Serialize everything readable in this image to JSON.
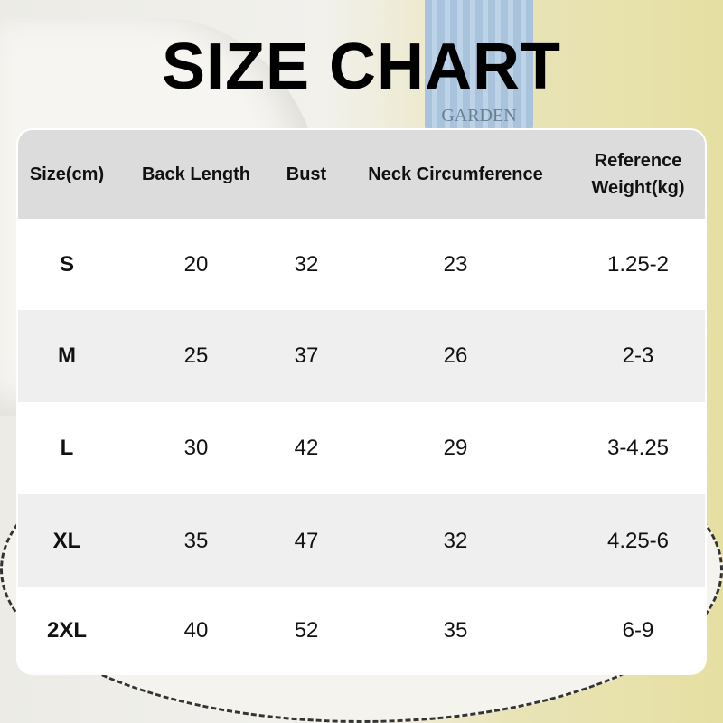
{
  "title": "SIZE CHART",
  "background_label": "GARDEN",
  "colors": {
    "header_bg": "#dcdcdc",
    "row_alt_bg": "#efefef",
    "row_bg": "#ffffff",
    "text": "#111111"
  },
  "table": {
    "headers": [
      "Size(cm)",
      "Back Length",
      "Bust",
      "Neck Circumference",
      "Reference\nWeight(kg)"
    ],
    "header_weight_line1": "Reference",
    "header_weight_line2": "Weight(kg)",
    "rows": [
      [
        "S",
        "20",
        "32",
        "23",
        "1.25-2"
      ],
      [
        "M",
        "25",
        "37",
        "26",
        "2-3"
      ],
      [
        "L",
        "30",
        "42",
        "29",
        "3-4.25"
      ],
      [
        "XL",
        "35",
        "47",
        "32",
        "4.25-6"
      ],
      [
        "2XL",
        "40",
        "52",
        "35",
        "6-9"
      ]
    ]
  }
}
